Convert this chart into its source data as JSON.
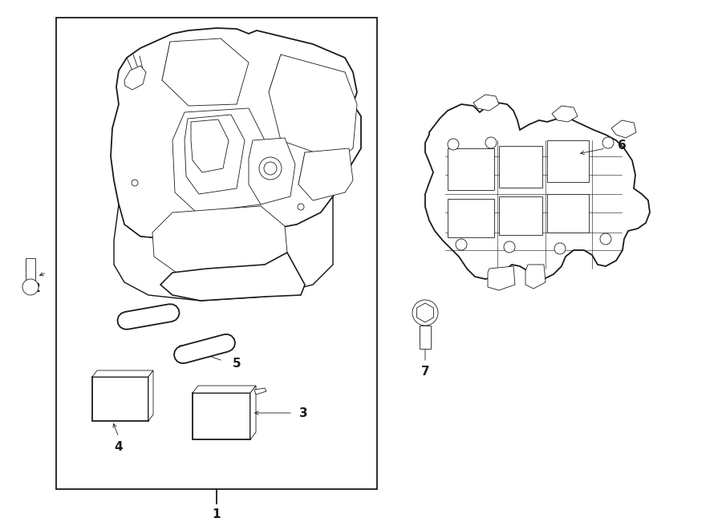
{
  "bg_color": "#ffffff",
  "line_color": "#1a1a1a",
  "lw": 1.3,
  "lw_thin": 0.6,
  "fig_width": 9.0,
  "fig_height": 6.61,
  "dpi": 100
}
